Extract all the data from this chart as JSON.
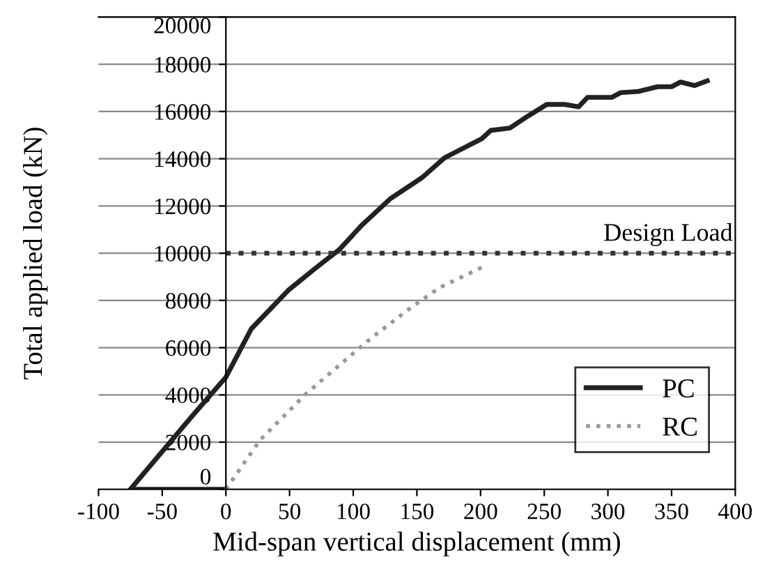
{
  "chart_data": {
    "type": "line",
    "xlabel": "Mid-span vertical displacement (mm)",
    "ylabel": "Total applied load (kN)",
    "xlim": [
      -100,
      400
    ],
    "xticks": [
      -100,
      -50,
      0,
      50,
      100,
      150,
      200,
      250,
      300,
      350,
      400
    ],
    "ylim": [
      0,
      20000
    ],
    "yticks": [
      0,
      2000,
      4000,
      6000,
      8000,
      10000,
      12000,
      14000,
      16000,
      18000,
      20000
    ],
    "grid": "y",
    "legend": "bottom right",
    "marker": "none",
    "series": [
      {
        "name": "PC",
        "color": "#222222",
        "line_style": "solid",
        "x": [
          0,
          -75,
          -50,
          -25,
          0,
          20,
          49,
          70,
          89,
          107,
          129,
          154,
          172,
          201,
          208,
          223,
          237,
          252,
          266,
          277,
          284,
          303,
          310,
          324,
          339,
          350,
          357,
          368,
          378
        ],
        "values": [
          0,
          0,
          1600,
          3200,
          4750,
          6800,
          8430,
          9350,
          10150,
          11200,
          12300,
          13200,
          14050,
          14850,
          15200,
          15300,
          15800,
          16300,
          16300,
          16200,
          16600,
          16600,
          16800,
          16850,
          17050,
          17050,
          17250,
          17100,
          17300
        ]
      },
      {
        "name": "RC",
        "color": "#999999",
        "line_style": "dotted",
        "x": [
          0,
          27,
          63,
          89,
          114,
          143,
          168,
          203
        ],
        "values": [
          0,
          2100,
          4050,
          5250,
          6400,
          7600,
          8550,
          9450
        ]
      }
    ],
    "ref_lines": [
      {
        "axis": "y",
        "value": 10000,
        "label": "Design Load",
        "color": "#333333",
        "line_style": "dotted"
      }
    ]
  }
}
